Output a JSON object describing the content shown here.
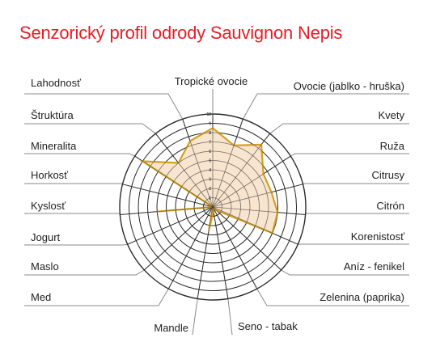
{
  "title": "Senzorický profil odrody Sauvignon Nepis",
  "colors": {
    "title": "#e41e26",
    "grid": "#2b2b2b",
    "leader": "#8a8a8a",
    "series_stroke": "#d4a020",
    "series_fill": "#f5dcc0"
  },
  "chart_data": {
    "type": "radar",
    "title": "Senzorický profil odrody Sauvignon Nepis",
    "scale_max": 10,
    "ticks": [
      "1",
      "2",
      "3",
      "4",
      "5",
      "6",
      "7",
      "8",
      "9",
      "10"
    ],
    "grid": true,
    "categories": [
      "Tropické ovocie",
      "Ovocie (jablko - hruška)",
      "Kvety",
      "Ruža",
      "Citrusy",
      "Citrón",
      "Korenistosť",
      "Aníz - fenikel",
      "Zelenina (paprika)",
      "Seno - tabak",
      "Mandle",
      "Med",
      "Maslo",
      "Jogurt",
      "Kyslosť",
      "Horkosť",
      "Mineralita",
      "Štruktúra",
      "Lahodnosť"
    ],
    "series": [
      {
        "values": [
          8.5,
          7,
          8.5,
          6.5,
          6.5,
          7,
          7,
          0.5,
          0,
          0.5,
          2.5,
          0,
          0,
          0,
          6,
          0,
          9,
          6,
          7.5
        ]
      }
    ]
  }
}
